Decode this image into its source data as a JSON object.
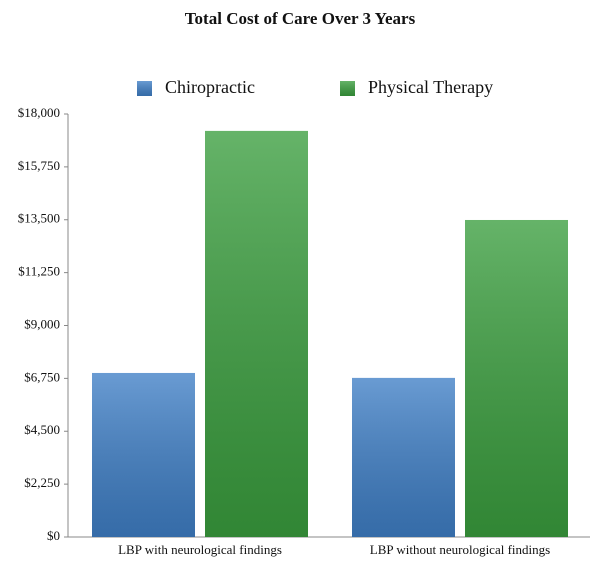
{
  "chart_data": {
    "type": "bar",
    "title": "Total Cost of Care Over 3 Years",
    "categories": [
      "LBP with neurological findings",
      "LBP without neurological findings"
    ],
    "series": [
      {
        "name": "Chiropractic",
        "color": "#3f7fc6",
        "values": [
          6980,
          6770
        ]
      },
      {
        "name": "Physical Therapy",
        "color": "#3a9e3e",
        "values": [
          17280,
          13490
        ]
      }
    ],
    "ylim": [
      0,
      18000
    ],
    "yticks": [
      {
        "value": 0,
        "label": "$0"
      },
      {
        "value": 2250,
        "label": "$2,250"
      },
      {
        "value": 4500,
        "label": "$4,500"
      },
      {
        "value": 6750,
        "label": "$6,750"
      },
      {
        "value": 9000,
        "label": "$9,000"
      },
      {
        "value": 11250,
        "label": "$11,250"
      },
      {
        "value": 13500,
        "label": "$13,500"
      },
      {
        "value": 15750,
        "label": "$15,750"
      },
      {
        "value": 18000,
        "label": "$18,000"
      }
    ],
    "grid": false,
    "legend": "top"
  }
}
